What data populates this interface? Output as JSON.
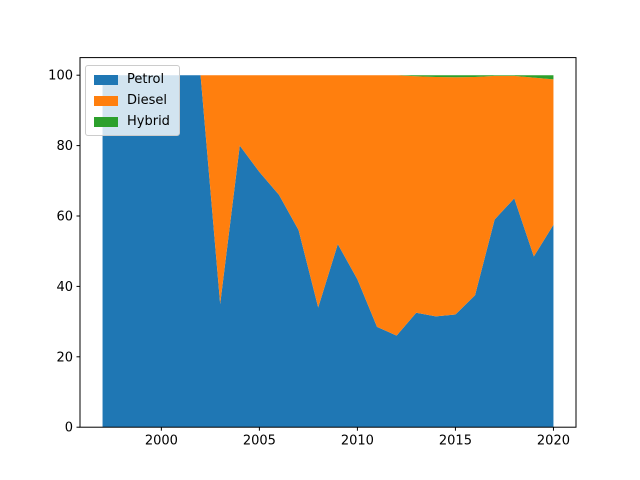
{
  "figure": {
    "background": "#ffffff",
    "title": ""
  },
  "chart_data": {
    "type": "area",
    "stacked": true,
    "title": "",
    "xlabel": "",
    "ylabel": "",
    "grid": false,
    "x": [
      1997,
      1998,
      1999,
      2000,
      2001,
      2002,
      2003,
      2004,
      2005,
      2006,
      2007,
      2008,
      2009,
      2010,
      2011,
      2012,
      2013,
      2014,
      2015,
      2016,
      2017,
      2018,
      2019,
      2020
    ],
    "series": [
      {
        "name": "Petrol",
        "color": "#1f77b4",
        "values": [
          100,
          100,
          100,
          100,
          100,
          100,
          35,
          80,
          72.5,
          66,
          56,
          34,
          52,
          42,
          28.5,
          26,
          32.5,
          31.5,
          32,
          37.5,
          59,
          65,
          48.5,
          57.5
        ]
      },
      {
        "name": "Diesel",
        "color": "#ff7f0e",
        "values": [
          0,
          0,
          0,
          0,
          0,
          0,
          65,
          20,
          27.5,
          34,
          44,
          66,
          48,
          58,
          71.5,
          74,
          67.2,
          68,
          67.4,
          62,
          40.8,
          34.8,
          50.8,
          41.3
        ]
      },
      {
        "name": "Hybrid",
        "color": "#2ca02c",
        "values": [
          0,
          0,
          0,
          0,
          0,
          0,
          0,
          0,
          0,
          0,
          0,
          0,
          0,
          0,
          0,
          0,
          0.3,
          0.5,
          0.6,
          0.5,
          0.2,
          0.2,
          0.7,
          1.2
        ]
      }
    ],
    "xlim": [
      1995.85,
      2021.15
    ],
    "ylim": [
      0,
      105
    ],
    "xticks": [
      2000,
      2005,
      2010,
      2015,
      2020
    ],
    "yticks": [
      0,
      20,
      40,
      60,
      80,
      100
    ],
    "legend": {
      "position": "upper-left",
      "entries": [
        "Petrol",
        "Diesel",
        "Hybrid"
      ]
    }
  }
}
